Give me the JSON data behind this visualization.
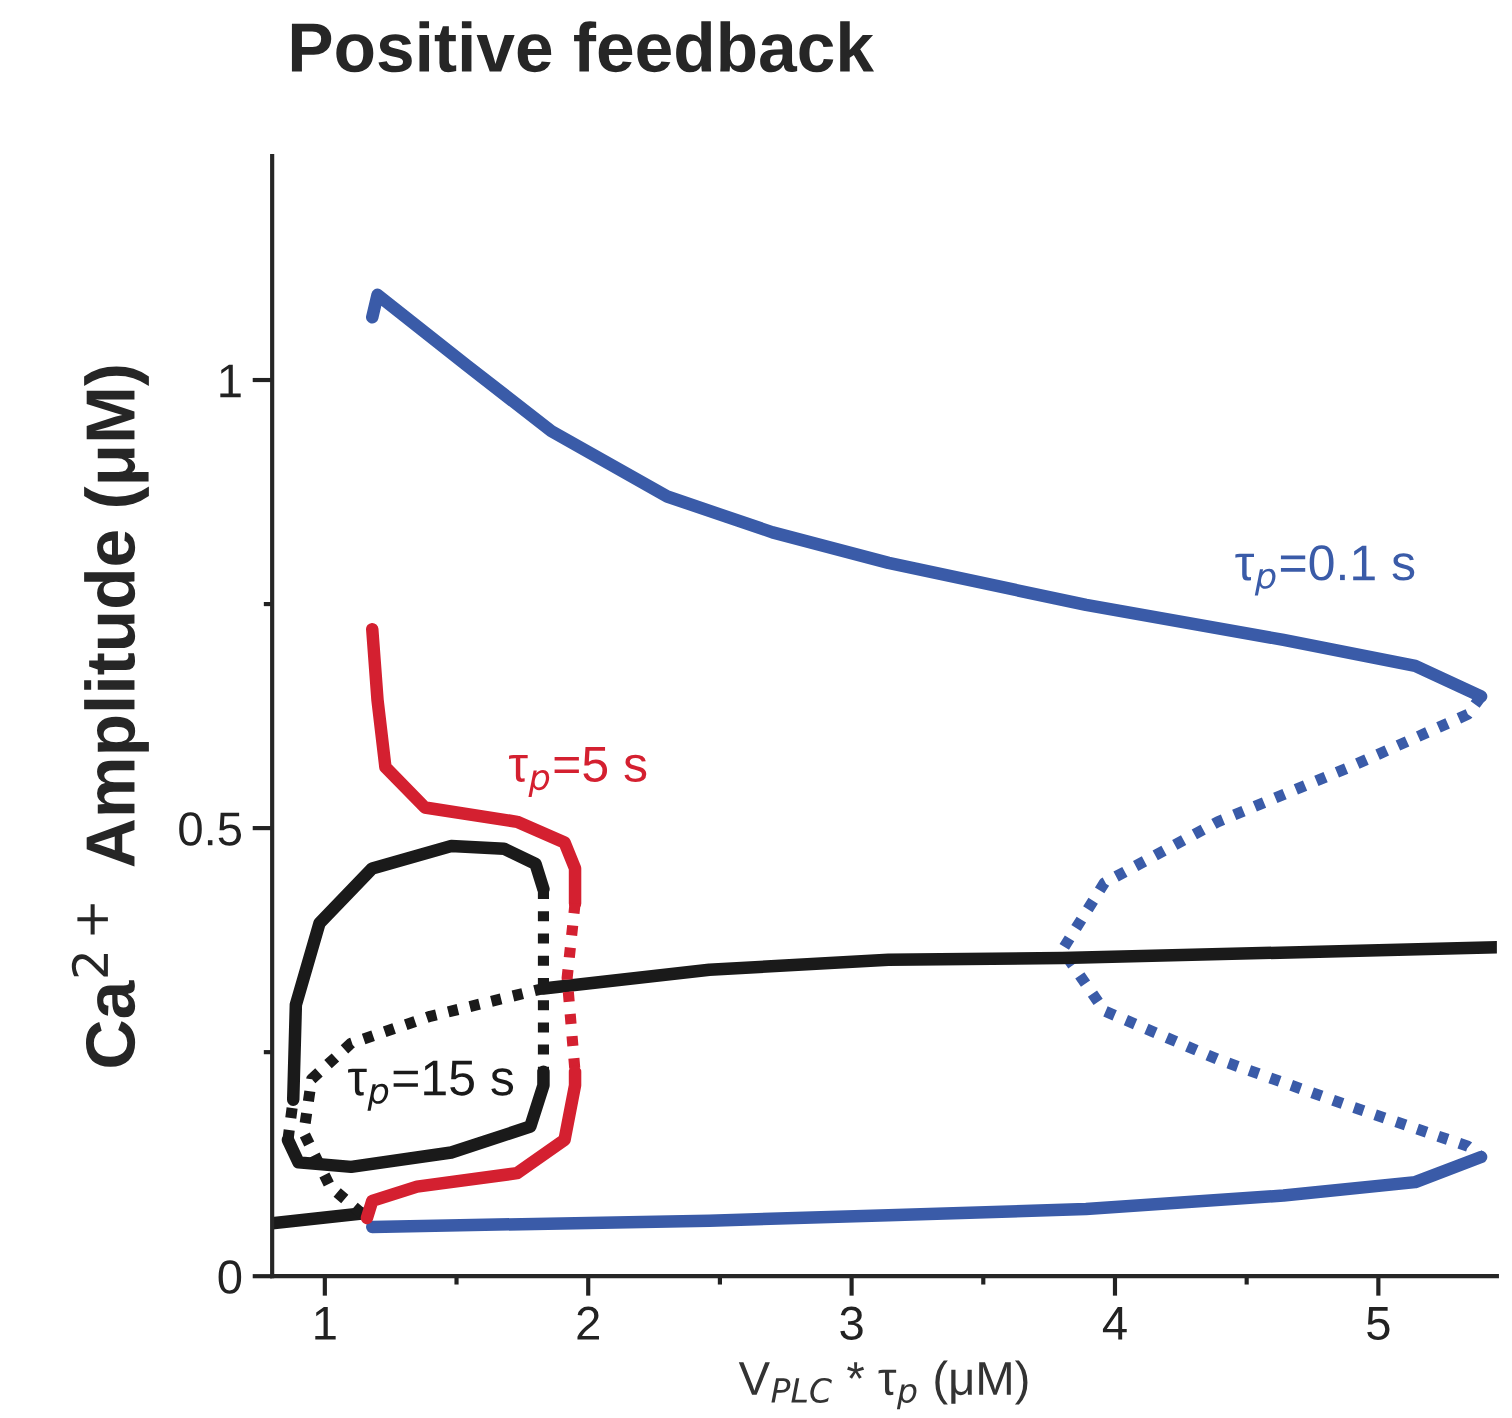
{
  "chart_data": {
    "type": "line",
    "title": "Positive feedback",
    "xlabel": "V$_{PLC}$ * τ$_{p}$ (μM)",
    "ylabel": "Ca$^{2+}$ Amplitude (μM)",
    "xlim": [
      0.8,
      5.45
    ],
    "ylim": [
      0,
      1.25
    ],
    "xticks": [
      1,
      {
        "value": 1.5,
        "label": null
      },
      2,
      {
        "value": 2.5,
        "label": null
      },
      3,
      {
        "value": 3.5,
        "label": null
      },
      4,
      {
        "value": 4.5,
        "label": null
      },
      5
    ],
    "yticks": [
      0,
      {
        "value": 0.25,
        "label": null
      },
      0.5,
      {
        "value": 0.75,
        "label": null
      },
      1
    ],
    "grid": false,
    "legend": false,
    "series": [
      {
        "name": "τ$_{p}$=0.1 s",
        "color": "#3a5ba8",
        "line_style": "solid",
        "x": [
          1.18,
          1.2,
          1.54,
          1.86,
          2.3,
          2.7,
          3.14,
          3.89,
          4.64,
          5.14,
          5.39
        ],
        "values": [
          1.07,
          1.095,
          1.016,
          0.943,
          0.87,
          0.83,
          0.796,
          0.749,
          0.71,
          0.681,
          0.647
        ]
      },
      {
        "color": "#3a5ba8",
        "line_style": "dotted",
        "x": [
          5.39,
          5.34,
          4.89,
          4.39,
          3.96,
          3.8,
          3.96,
          4.39,
          4.89,
          5.34,
          5.39
        ],
        "values": [
          0.647,
          0.627,
          0.568,
          0.507,
          0.439,
          0.364,
          0.296,
          0.242,
          0.19,
          0.145,
          0.133
        ]
      },
      {
        "color": "#3a5ba8",
        "line_style": "solid",
        "x": [
          5.39,
          5.14,
          4.64,
          3.89,
          3.14,
          2.46,
          1.18
        ],
        "values": [
          0.133,
          0.105,
          0.09,
          0.075,
          0.068,
          0.062,
          0.055
        ]
      },
      {
        "color": "#1a1a1a",
        "line_style": "solid",
        "x": [
          0.8,
          1.14
        ],
        "values": [
          0.059,
          0.07
        ]
      },
      {
        "color": "#1a1a1a",
        "line_style": "dotted",
        "x": [
          1.14,
          1.02,
          0.92,
          0.95,
          1.1,
          1.4,
          1.83
        ],
        "values": [
          0.07,
          0.1,
          0.16,
          0.22,
          0.26,
          0.29,
          0.321
        ]
      },
      {
        "color": "#1a1a1a",
        "line_style": "solid",
        "x": [
          1.83,
          2.46,
          3.14,
          3.8,
          5.45
        ],
        "values": [
          0.321,
          0.342,
          0.353,
          0.355,
          0.367
        ]
      },
      {
        "name": "τ$_{p}$=15 s",
        "color": "#1a1a1a",
        "line_style": "solid",
        "x": [
          0.88,
          0.89,
          0.98,
          1.18,
          1.48,
          1.68,
          1.8,
          1.83
        ],
        "values": [
          0.197,
          0.303,
          0.394,
          0.455,
          0.48,
          0.477,
          0.46,
          0.432
        ]
      },
      {
        "color": "#1a1a1a",
        "line_style": "dotted",
        "x": [
          1.83,
          1.83,
          1.83
        ],
        "values": [
          0.432,
          0.33,
          0.228
        ]
      },
      {
        "color": "#1a1a1a",
        "line_style": "solid",
        "x": [
          1.83,
          1.83,
          1.78,
          1.48,
          1.1,
          0.9,
          0.86
        ],
        "values": [
          0.228,
          0.213,
          0.167,
          0.138,
          0.122,
          0.127,
          0.152
        ]
      },
      {
        "color": "#1a1a1a",
        "line_style": "dotted",
        "x": [
          0.86,
          0.87,
          0.88
        ],
        "values": [
          0.152,
          0.175,
          0.197
        ]
      },
      {
        "name": "τ$_{p}$=5 s",
        "color": "#d42030",
        "line_style": "solid",
        "x": [
          1.18,
          1.2,
          1.23,
          1.38,
          1.73,
          1.91,
          1.95,
          1.95
        ],
        "values": [
          0.722,
          0.643,
          0.568,
          0.523,
          0.507,
          0.484,
          0.455,
          0.416
        ]
      },
      {
        "color": "#d42030",
        "line_style": "dotted",
        "x": [
          1.95,
          1.92,
          1.95
        ],
        "values": [
          0.416,
          0.333,
          0.228
        ]
      },
      {
        "color": "#d42030",
        "line_style": "solid",
        "x": [
          1.95,
          1.95,
          1.91,
          1.73,
          1.35,
          1.18,
          1.16
        ],
        "values": [
          0.228,
          0.213,
          0.152,
          0.115,
          0.1,
          0.084,
          0.065
        ]
      }
    ]
  }
}
